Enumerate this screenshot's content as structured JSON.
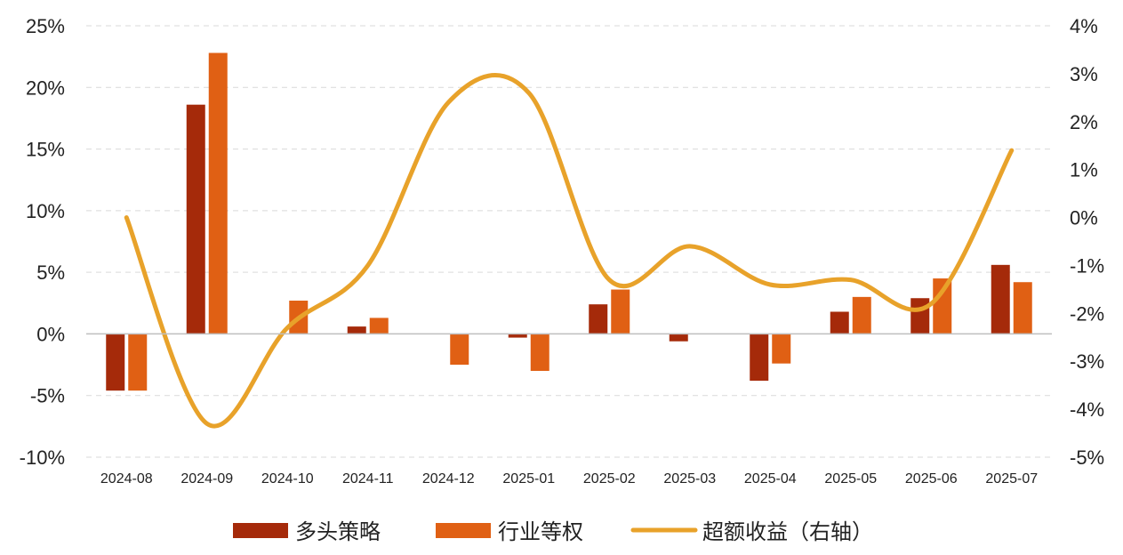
{
  "chart_data": {
    "type": "bar",
    "categories": [
      "2024-08",
      "2024-09",
      "2024-10",
      "2024-11",
      "2024-12",
      "2025-01",
      "2025-02",
      "2025-03",
      "2025-04",
      "2025-05",
      "2025-06",
      "2025-07"
    ],
    "series": [
      {
        "name": "多头策略",
        "type": "bar",
        "axis": "left",
        "color": "#a52a0a",
        "values": [
          -4.6,
          18.6,
          0.0,
          0.6,
          0.0,
          -0.3,
          2.4,
          -0.6,
          -3.8,
          1.8,
          2.9,
          5.6
        ]
      },
      {
        "name": "行业等权",
        "type": "bar",
        "axis": "left",
        "color": "#e06014",
        "values": [
          -4.6,
          22.8,
          2.7,
          1.3,
          -2.5,
          -3.0,
          3.6,
          0.0,
          -2.4,
          3.0,
          4.5,
          4.2
        ]
      },
      {
        "name": "超额收益（右轴）",
        "type": "line",
        "axis": "right",
        "color": "#e8a22a",
        "smooth": true,
        "values": [
          0.0,
          -4.3,
          -2.3,
          -1.0,
          2.4,
          2.6,
          -1.3,
          -0.6,
          -1.4,
          -1.3,
          -1.8,
          1.4
        ]
      }
    ],
    "y_left": {
      "min": -10,
      "max": 25,
      "ticks": [
        "25%",
        "20%",
        "15%",
        "10%",
        "5%",
        "0%",
        "-5%",
        "-10%"
      ]
    },
    "y_right": {
      "min": -5,
      "max": 4,
      "ticks": [
        "4%",
        "3%",
        "2%",
        "1%",
        "0%",
        "-1%",
        "-2%",
        "-3%",
        "-4%",
        "-5%"
      ]
    },
    "grid": "horizontal-dashed",
    "legend_position": "bottom"
  }
}
